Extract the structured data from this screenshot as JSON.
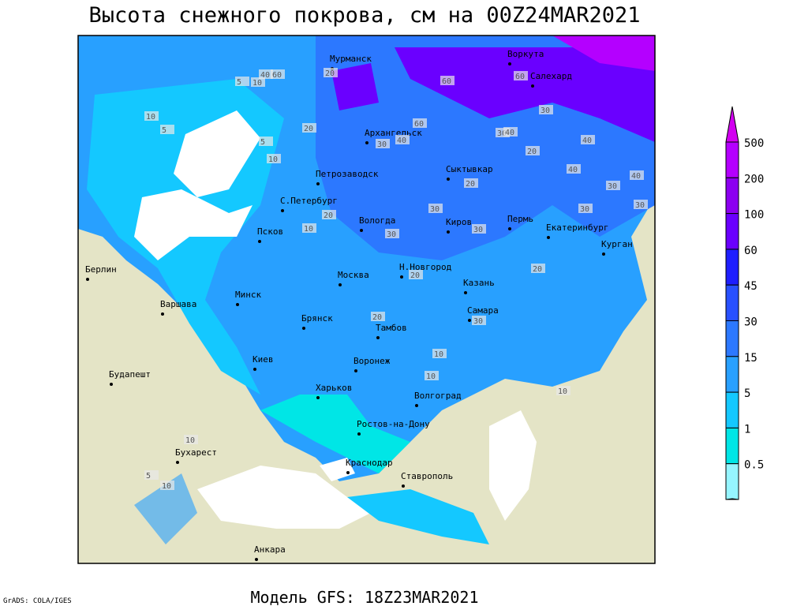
{
  "title": "Высота снежного покрова, см на 00Z24MAR2021",
  "footer": "Модель GFS: 18Z23MAR2021",
  "credit": "GrADS: COLA/IGES",
  "legend": {
    "top_color": "#d200f0",
    "bottom_color": "#ffffff",
    "items": [
      {
        "label": "500",
        "color": "#b400ff"
      },
      {
        "label": "200",
        "color": "#8c00f0"
      },
      {
        "label": "100",
        "color": "#6a00ff"
      },
      {
        "label": "60",
        "color": "#1e1eff"
      },
      {
        "label": "45",
        "color": "#2850ff"
      },
      {
        "label": "30",
        "color": "#2c78ff"
      },
      {
        "label": "15",
        "color": "#28a0ff"
      },
      {
        "label": "5",
        "color": "#14c8ff"
      },
      {
        "label": "1",
        "color": "#00e6e6"
      },
      {
        "label": "0.5",
        "color": "#96f5ff"
      }
    ]
  },
  "cities": [
    "Мурманск",
    "Воркута",
    "Салехард",
    "Архангельск",
    "Петрозаводск",
    "Сыктывкар",
    "С.Петербург",
    "Вологда",
    "Киров",
    "Пермь",
    "Екатеринбург",
    "Курган",
    "Псков",
    "Москва",
    "Н.Новгород",
    "Казань",
    "Берлин",
    "Варшава",
    "Минск",
    "Брянск",
    "Тамбов",
    "Самара",
    "Киев",
    "Воронеж",
    "Харьков",
    "Будапешт",
    "Волгоград",
    "Ростов-на-Дону",
    "Бухарест",
    "Краснодар",
    "Ставрополь",
    "Анкара"
  ],
  "contour_labels": [
    "40",
    "5",
    "10",
    "60",
    "20",
    "10",
    "5",
    "20",
    "30",
    "40",
    "60",
    "60",
    "60",
    "30",
    "30",
    "40",
    "40",
    "20",
    "30",
    "40",
    "30",
    "40",
    "30",
    "20",
    "30",
    "20",
    "10",
    "30",
    "30",
    "20",
    "20",
    "10",
    "30",
    "20",
    "10",
    "10",
    "5",
    "10",
    "10",
    "5",
    "10"
  ]
}
